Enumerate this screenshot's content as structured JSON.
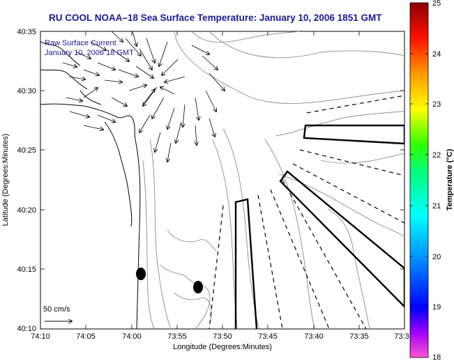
{
  "title": "RU COOL  NOAA–18  Sea Surface Temperature:  January 10, 2006 1851 GMT",
  "overlay": {
    "line1": "Raw Surface Current",
    "line2": "January 10, 2006 18 GMT"
  },
  "axes": {
    "xlabel": "Longitude (Degrees:Minutes)",
    "ylabel": "Latitude (Degrees:Minutes)",
    "xticks": [
      "74:10",
      "74:05",
      "74:00",
      "73:55",
      "73:50",
      "73:45",
      "73:40",
      "73:35",
      "73:3"
    ],
    "yticks": [
      "40:35",
      "40:30",
      "40:25",
      "40:20",
      "40:15",
      "40:10"
    ]
  },
  "colorbar": {
    "label": "Temperature (°C)",
    "ticks": [
      "25",
      "24",
      "23",
      "22",
      "21",
      "20",
      "19",
      "18"
    ],
    "min": 18,
    "max": 25
  },
  "scale": {
    "label": "50 cm/s"
  },
  "colors": {
    "title": "#1a1a99",
    "coastline": "#000000",
    "bathymetry": "#8c8c8c"
  }
}
